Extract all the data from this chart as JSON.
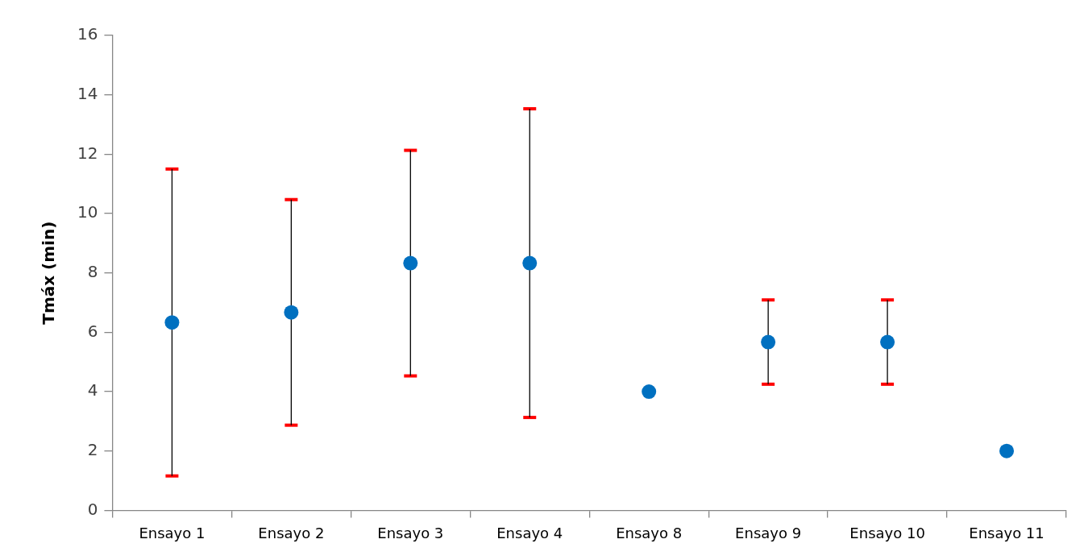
{
  "chart_data": {
    "type": "scatter",
    "ylabel": "Tmáx (min)",
    "categories": [
      "Ensayo 1",
      "Ensayo 2",
      "Ensayo 3",
      "Ensayo 4",
      "Ensayo 8",
      "Ensayo 9",
      "Ensayo 10",
      "Ensayo 11"
    ],
    "values": [
      6.33,
      6.67,
      8.33,
      8.33,
      4,
      5.67,
      5.67,
      2
    ],
    "errors": [
      5.17,
      3.8,
      3.8,
      5.2,
      null,
      1.42,
      1.42,
      null
    ],
    "color": "#0070c0",
    "marker": "circle",
    "grid": false,
    "legend": false,
    "ylim": [
      0,
      16
    ],
    "yticks": [
      0,
      2,
      4,
      6,
      8,
      10,
      12,
      14,
      16
    ]
  }
}
